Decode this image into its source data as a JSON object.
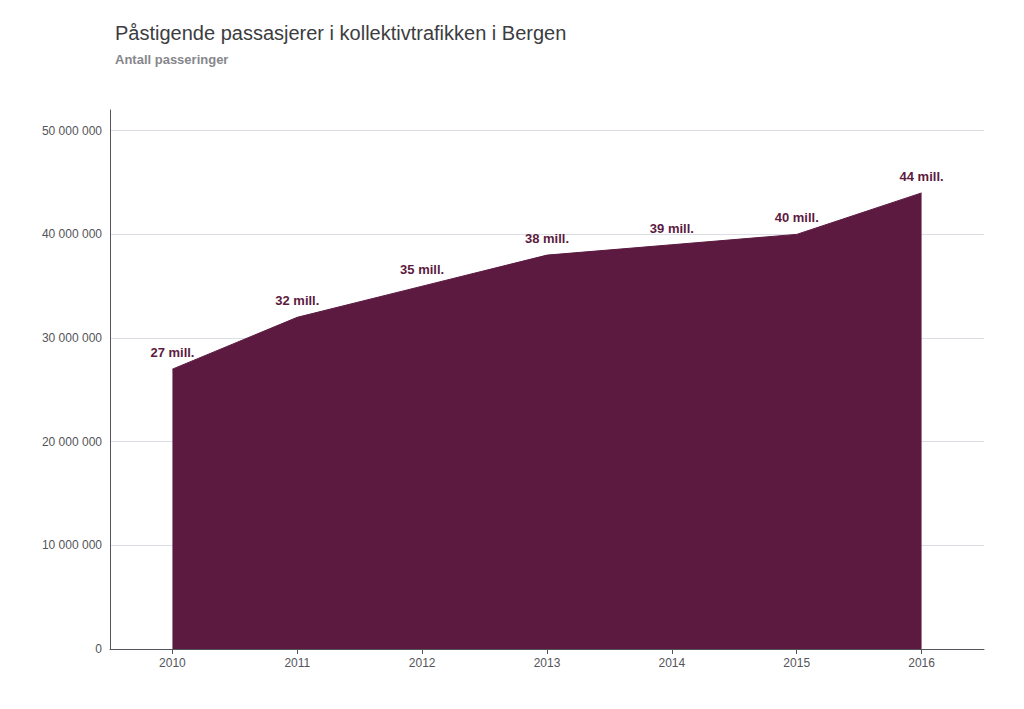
{
  "chart_data": {
    "type": "area",
    "title": "Påstigende passasjerer i kollektivtrafikken i Bergen",
    "subtitle": "Antall passeringer",
    "x": [
      2010,
      2011,
      2012,
      2013,
      2014,
      2015,
      2016
    ],
    "values": [
      27000000,
      32000000,
      35000000,
      38000000,
      39000000,
      40000000,
      44000000
    ],
    "value_labels": [
      "27 mill.",
      "32 mill.",
      "35 mill.",
      "38 mill.",
      "39 mill.",
      "40 mill.",
      "44 mill."
    ],
    "color": "#5c1a40",
    "data_labels": true,
    "xlim": [
      2009.5,
      2016.5
    ],
    "xticks": [
      2010,
      2011,
      2012,
      2013,
      2014,
      2015,
      2016
    ],
    "ylim": [
      0,
      52000000
    ],
    "yticks": [
      0,
      {
        "value": 10000000,
        "label": "10 000 000"
      },
      {
        "value": 20000000,
        "label": "20 000 000"
      },
      {
        "value": 30000000,
        "label": "30 000 000"
      },
      {
        "value": 40000000,
        "label": "40 000 000"
      },
      {
        "value": 50000000,
        "label": "50 000 000"
      }
    ],
    "grid": true
  }
}
